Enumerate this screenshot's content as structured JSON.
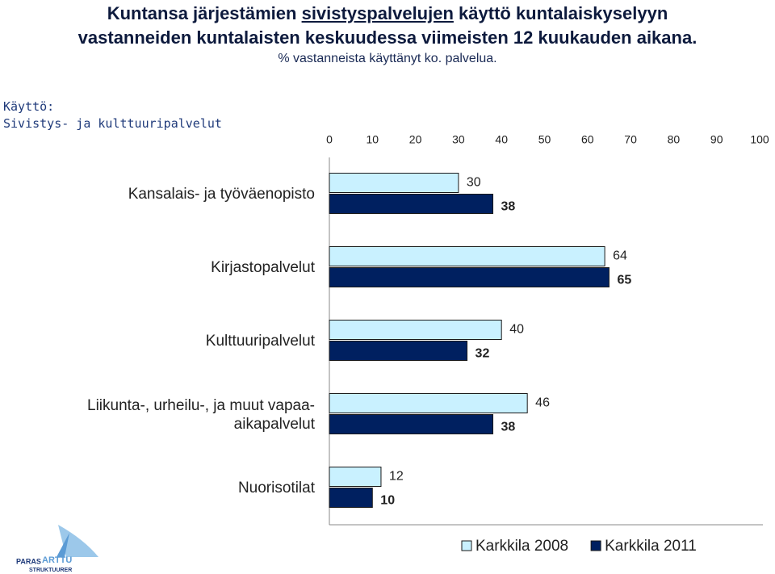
{
  "chart_data": {
    "type": "hbar",
    "title_parts": [
      "Kuntansa järjestämien",
      "sivistyspalvelujen",
      "käyttö kuntalaiskyselyyn",
      "vastanneiden kuntalaisten keskuudessa viimeisten 12 kuukauden aikana."
    ],
    "subtitle": "% vastanneista käyttänyt ko. palvelua.",
    "axis_heading": [
      "Käyttö:",
      "Sivistys- ja kulttuuripalvelut"
    ],
    "categories": [
      "Kansalais- ja työväenopisto",
      "Kirjastopalvelut",
      "Kulttuuripalvelut",
      "Liikunta-, urheilu-, ja muut vapaa-\naikapalvelut",
      "Nuorisotilat"
    ],
    "series": [
      {
        "name": "Karkkila 2008",
        "color": "#c9f1ff",
        "values": [
          30,
          64,
          40,
          46,
          12
        ]
      },
      {
        "name": "Karkkila 2011",
        "color": "#002060",
        "values": [
          38,
          65,
          32,
          38,
          10
        ]
      }
    ],
    "xlim": [
      0,
      100
    ],
    "xticks": [
      0,
      10,
      20,
      30,
      40,
      50,
      60,
      70,
      80,
      90,
      100
    ],
    "legend": "bottom-right",
    "logo": [
      "PARAS",
      "ARTTU",
      "STRUKTUURER"
    ]
  }
}
